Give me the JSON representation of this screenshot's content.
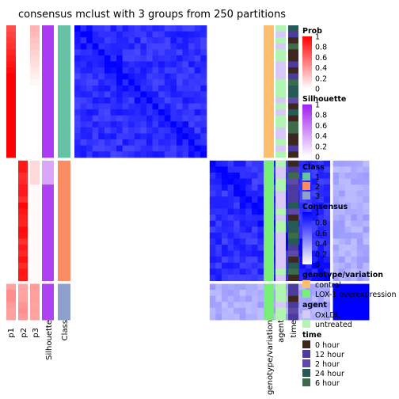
{
  "chart_data": {
    "type": "heatmap",
    "title": "consensus mclust with 3 groups from 250 partitions",
    "n_samples": 48,
    "group_sizes": [
      22,
      20,
      6
    ],
    "class_assignment": [
      1,
      2,
      3
    ],
    "prob_means": [
      [
        1.0,
        0.0,
        0.03
      ],
      [
        0.0,
        0.97,
        0.03
      ],
      [
        0.3,
        0.3,
        0.4
      ]
    ],
    "silhouette_means": [
      0.88,
      0.85,
      0.82
    ],
    "consensus_block_means": [
      [
        0.85,
        0.0,
        0.0
      ],
      [
        0.0,
        0.85,
        0.35
      ],
      [
        0.0,
        0.35,
        1.0
      ]
    ],
    "column_labels": [
      "p1",
      "p2",
      "p3",
      "Silhouette",
      "Class"
    ],
    "annotation_labels": [
      "genotype/variation",
      "agent",
      "time"
    ],
    "legends": [
      {
        "title": "Prob",
        "type": "gradient",
        "ticks": [
          "1",
          "0.8",
          "0.6",
          "0.4",
          "0.2",
          "0"
        ],
        "colors": [
          "#ff0000",
          "#ffffff"
        ]
      },
      {
        "title": "Silhouette",
        "type": "gradient",
        "ticks": [
          "1",
          "0.8",
          "0.6",
          "0.4",
          "0.2",
          "0"
        ],
        "colors": [
          "#a020f0",
          "#ffffff"
        ]
      },
      {
        "title": "Class",
        "type": "discrete",
        "items": [
          {
            "label": "1",
            "color": "#66c2a5"
          },
          {
            "label": "2",
            "color": "#fc8d62"
          },
          {
            "label": "3",
            "color": "#8da0cb"
          }
        ]
      },
      {
        "title": "Consensus",
        "type": "gradient",
        "ticks": [
          "1",
          "0.8",
          "0.6",
          "0.4",
          "0.2",
          "0"
        ],
        "colors": [
          "#0000ff",
          "#ffffff"
        ]
      },
      {
        "title": "genotype/variation",
        "type": "discrete",
        "items": [
          {
            "label": "control",
            "color": "#fdbf6f"
          },
          {
            "label": "LOX-1 overexpression",
            "color": "#77ee77"
          }
        ]
      },
      {
        "title": "agent",
        "type": "discrete",
        "items": [
          {
            "label": "OxLDL",
            "color": "#d8c8f8"
          },
          {
            "label": "untreated",
            "color": "#b2f5b2"
          }
        ]
      },
      {
        "title": "time",
        "type": "discrete",
        "items": [
          {
            "label": "0 hour",
            "color": "#3d2620"
          },
          {
            "label": "12 hour",
            "color": "#4b3b9c"
          },
          {
            "label": "2 hour",
            "color": "#5e4aa6"
          },
          {
            "label": "24 hour",
            "color": "#285a55"
          },
          {
            "label": "6 hour",
            "color": "#3d6b4a"
          }
        ]
      }
    ],
    "annotation_colors": {
      "genotype": [
        "#fdbf6f",
        "#77ee77"
      ],
      "agent": [
        "#d8c8f8",
        "#b2f5b2"
      ],
      "time": [
        "#3d2620",
        "#4b3b9c",
        "#5e4aa6",
        "#285a55",
        "#3d6b4a"
      ]
    }
  }
}
